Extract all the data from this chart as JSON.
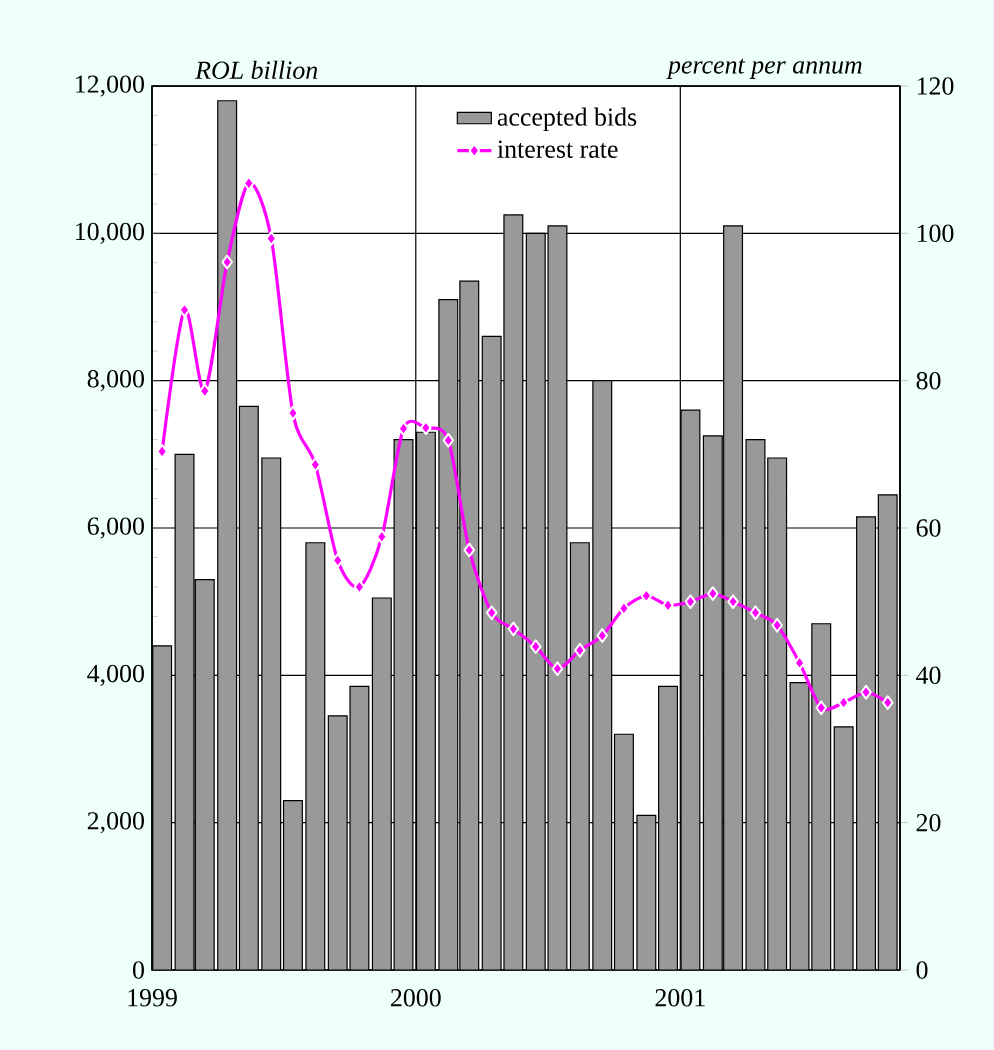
{
  "chart_data": {
    "type": "bar",
    "ylabel": "ROL billion",
    "y2label": "percent per annum",
    "x": [
      "1999-01-15",
      "1999-02-15",
      "1999-03-15",
      "1999-04-15",
      "1999-05-15",
      "1999-06-15",
      "1999-07-15",
      "1999-08-15",
      "1999-09-15",
      "1999-10-15",
      "1999-11-15",
      "1999-12-15",
      "2000-01-15",
      "2000-02-15",
      "2000-03-15",
      "2000-04-15",
      "2000-05-15",
      "2000-06-15",
      "2000-07-15",
      "2000-08-15",
      "2000-09-15",
      "2000-10-15",
      "2000-11-15",
      "2000-12-15",
      "2001-01-15",
      "2001-02-15",
      "2001-03-15",
      "2001-04-15",
      "2001-05-15",
      "2001-06-15",
      "2001-07-15",
      "2001-08-15",
      "2001-09-15",
      "2001-10-15"
    ],
    "xlim": [
      "1999-01-01",
      "2001-11-01"
    ],
    "xticks": [
      {
        "value": "1999-01-01",
        "label": "1999"
      },
      {
        "value": "2000-01-01",
        "label": "2000"
      },
      {
        "value": "2001-01-01",
        "label": "2001"
      }
    ],
    "ylim": [
      0,
      12000
    ],
    "yticks": [
      {
        "value": 0,
        "label": "0"
      },
      {
        "value": 2000,
        "label": "2,000"
      },
      {
        "value": 4000,
        "label": "4,000"
      },
      {
        "value": 6000,
        "label": "6,000"
      },
      {
        "value": 8000,
        "label": "8,000"
      },
      {
        "value": 10000,
        "label": "10,000"
      },
      {
        "value": 12000,
        "label": "12,000"
      }
    ],
    "y2lim": [
      0,
      120
    ],
    "y2ticks": [
      0,
      20,
      40,
      60,
      80,
      100,
      120
    ],
    "grid": true,
    "legend": "top",
    "marker": "diamond",
    "series": [
      {
        "name": "accepted bids",
        "color": "#999999",
        "values": [
          4400,
          7000,
          5300,
          11800,
          7650,
          6950,
          2300,
          5800,
          3450,
          3850,
          5050,
          7200,
          7300,
          9100,
          9350,
          8600,
          10250,
          10000,
          10100,
          5800,
          8000,
          3200,
          2100,
          3850,
          7600,
          7250,
          10100,
          7200,
          6950,
          3900,
          4700,
          3300,
          6150,
          6450
        ]
      },
      {
        "name": "interest rate",
        "type": "line",
        "axis": "y2",
        "color": "#ff00ff",
        "values": [
          70.4,
          89.6,
          78.6,
          96.1,
          106.8,
          99.3,
          75.6,
          68.6,
          55.6,
          52.0,
          58.8,
          73.5,
          73.6,
          71.9,
          57.0,
          48.5,
          46.3,
          43.9,
          40.9,
          43.4,
          45.4,
          49.1,
          50.8,
          49.5,
          50.0,
          51.1,
          50.0,
          48.5,
          46.8,
          41.7,
          35.6,
          36.3,
          37.7,
          36.3
        ]
      }
    ]
  }
}
